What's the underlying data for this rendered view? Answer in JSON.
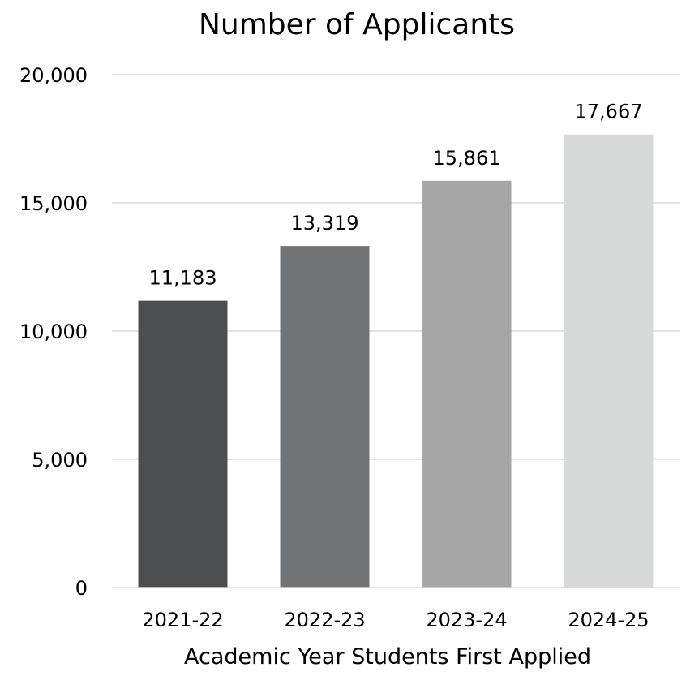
{
  "chart_data": {
    "type": "bar",
    "title": "Number of Applicants",
    "xlabel": "Academic Year Students First Applied",
    "ylabel": "",
    "categories": [
      "2021-22",
      "2022-23",
      "2023-24",
      "2024-25"
    ],
    "values": [
      11183,
      13319,
      15861,
      17667
    ],
    "value_labels": [
      "11,183",
      "13,319",
      "15,861",
      "17,667"
    ],
    "ylim": [
      0,
      20000
    ],
    "y_ticks": [
      0,
      5000,
      10000,
      15000,
      20000
    ],
    "y_tick_labels": [
      "0",
      "5,000",
      "10,000",
      "15,000",
      "20,000"
    ],
    "grid": true,
    "legend": "none",
    "bar_colors": [
      "#4d4e50",
      "#727375",
      "#a6a6a6",
      "#d8d9d9"
    ],
    "gridline_color": "#d9d9d9"
  }
}
